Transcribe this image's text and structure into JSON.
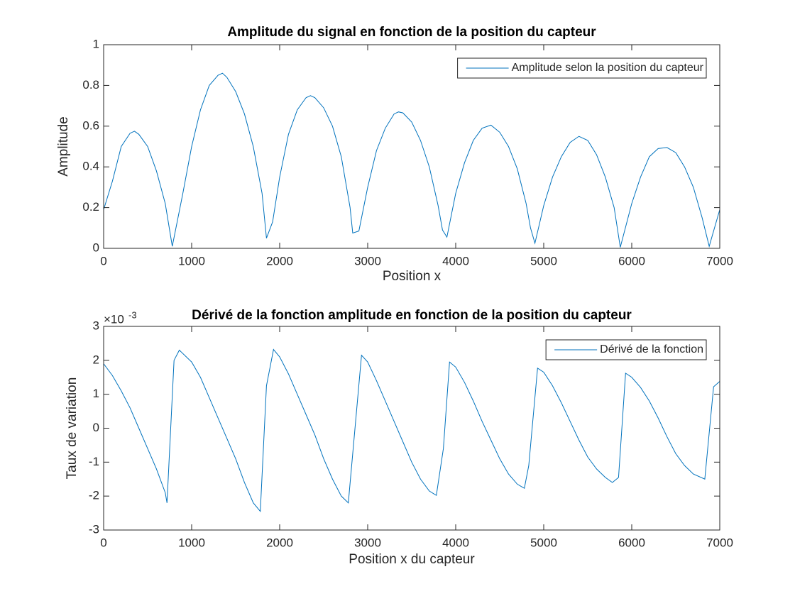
{
  "chart_data": [
    {
      "type": "line",
      "title": "Amplitude du signal en fonction de la position du capteur",
      "x_label": "Position x",
      "y_label": "Amplitude",
      "x": [
        0,
        100,
        200,
        300,
        350,
        400,
        500,
        600,
        700,
        780,
        900,
        1000,
        1100,
        1200,
        1300,
        1350,
        1400,
        1500,
        1600,
        1700,
        1800,
        1850,
        1920,
        2000,
        2100,
        2200,
        2300,
        2350,
        2400,
        2500,
        2600,
        2700,
        2800,
        2830,
        2900,
        3000,
        3100,
        3200,
        3300,
        3350,
        3400,
        3500,
        3600,
        3700,
        3800,
        3850,
        3900,
        4000,
        4100,
        4200,
        4300,
        4400,
        4500,
        4600,
        4700,
        4800,
        4850,
        4900,
        5000,
        5100,
        5200,
        5300,
        5400,
        5500,
        5600,
        5700,
        5800,
        5870,
        6000,
        6100,
        6200,
        6300,
        6400,
        6500,
        6600,
        6700,
        6800,
        6880,
        7000
      ],
      "series": [
        {
          "name": "Amplitude selon la position du capteur",
          "color": "#0072bd",
          "values": [
            0.19,
            0.33,
            0.5,
            0.565,
            0.575,
            0.56,
            0.5,
            0.38,
            0.22,
            0.01,
            0.27,
            0.5,
            0.68,
            0.8,
            0.85,
            0.86,
            0.84,
            0.77,
            0.66,
            0.5,
            0.27,
            0.05,
            0.13,
            0.35,
            0.56,
            0.68,
            0.74,
            0.75,
            0.74,
            0.69,
            0.6,
            0.45,
            0.2,
            0.075,
            0.085,
            0.3,
            0.48,
            0.59,
            0.66,
            0.67,
            0.665,
            0.62,
            0.53,
            0.4,
            0.21,
            0.09,
            0.055,
            0.27,
            0.42,
            0.53,
            0.59,
            0.605,
            0.57,
            0.5,
            0.39,
            0.22,
            0.1,
            0.025,
            0.21,
            0.35,
            0.45,
            0.52,
            0.55,
            0.53,
            0.46,
            0.35,
            0.2,
            0.005,
            0.22,
            0.35,
            0.45,
            0.49,
            0.495,
            0.47,
            0.4,
            0.3,
            0.15,
            0.01,
            0.19
          ]
        }
      ],
      "xlim": [
        0,
        7000
      ],
      "xticks": [
        0,
        1000,
        2000,
        3000,
        4000,
        5000,
        6000,
        7000
      ],
      "ylim": [
        0,
        1
      ],
      "yticks": [
        0,
        0.2,
        0.4,
        0.6,
        0.8,
        1
      ],
      "grid": false,
      "legend": "northeast"
    },
    {
      "type": "line",
      "title": "Dérivé de la fonction amplitude en fonction de la position du capteur",
      "x_label": "Position x du capteur",
      "y_label": "Taux de variation",
      "y_multiplier": "×10",
      "y_multiplier_exponent": "-3",
      "x": [
        0,
        100,
        200,
        300,
        400,
        500,
        600,
        700,
        720,
        800,
        860,
        1000,
        1100,
        1200,
        1300,
        1400,
        1500,
        1600,
        1700,
        1780,
        1850,
        1930,
        2000,
        2100,
        2200,
        2300,
        2400,
        2500,
        2600,
        2700,
        2780,
        2930,
        3000,
        3100,
        3200,
        3300,
        3400,
        3500,
        3600,
        3700,
        3780,
        3860,
        3930,
        4000,
        4100,
        4200,
        4300,
        4400,
        4500,
        4600,
        4700,
        4780,
        4830,
        4930,
        5000,
        5100,
        5200,
        5300,
        5400,
        5500,
        5600,
        5700,
        5780,
        5850,
        5930,
        6000,
        6100,
        6200,
        6300,
        6400,
        6500,
        6600,
        6700,
        6830,
        6930,
        7000
      ],
      "series": [
        {
          "name": "Dérivé de la fonction",
          "color": "#0072bd",
          "values": [
            1.9,
            1.55,
            1.1,
            0.6,
            0.0,
            -0.6,
            -1.2,
            -1.9,
            -2.2,
            2.0,
            2.3,
            1.95,
            1.5,
            0.9,
            0.3,
            -0.3,
            -0.9,
            -1.6,
            -2.2,
            -2.45,
            1.25,
            2.32,
            2.1,
            1.6,
            1.0,
            0.4,
            -0.2,
            -0.9,
            -1.5,
            -2.0,
            -2.2,
            2.15,
            1.95,
            1.4,
            0.8,
            0.2,
            -0.4,
            -1.0,
            -1.5,
            -1.85,
            -1.98,
            -0.6,
            1.95,
            1.8,
            1.35,
            0.8,
            0.2,
            -0.35,
            -0.9,
            -1.35,
            -1.65,
            -1.77,
            -1.1,
            1.77,
            1.65,
            1.25,
            0.75,
            0.2,
            -0.35,
            -0.85,
            -1.2,
            -1.45,
            -1.6,
            -1.45,
            1.62,
            1.5,
            1.2,
            0.8,
            0.3,
            -0.25,
            -0.75,
            -1.1,
            -1.35,
            -1.5,
            1.22,
            1.38
          ]
        }
      ],
      "xlim": [
        0,
        7000
      ],
      "xticks": [
        0,
        1000,
        2000,
        3000,
        4000,
        5000,
        6000,
        7000
      ],
      "ylim": [
        -3,
        3
      ],
      "yticks": [
        -3,
        -2,
        -1,
        0,
        1,
        2,
        3
      ],
      "grid": false,
      "legend": "northeast"
    }
  ]
}
